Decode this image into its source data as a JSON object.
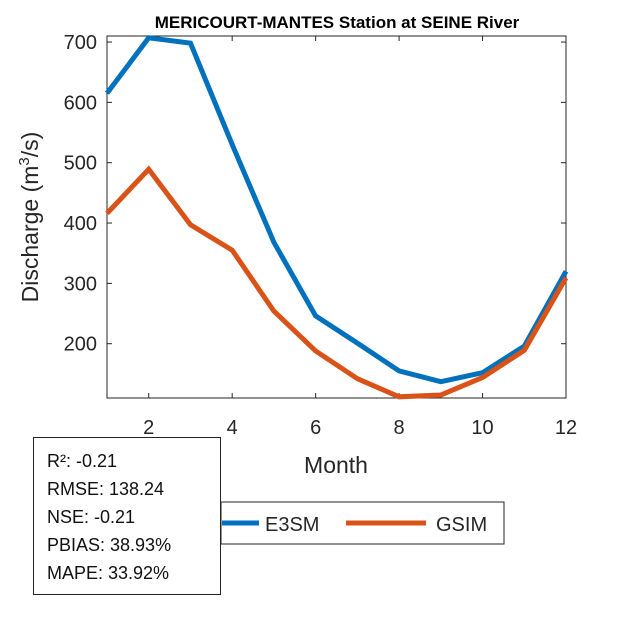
{
  "chart_data": {
    "type": "line",
    "title": "MERICOURT-MANTES  Station at  SEINE  River",
    "xlabel": "Month",
    "ylabel_main": "Discharge (m",
    "ylabel_sup": "3",
    "ylabel_end": "/s)",
    "x": [
      1,
      2,
      3,
      4,
      5,
      6,
      7,
      8,
      9,
      10,
      11,
      12
    ],
    "xlim": [
      1,
      12
    ],
    "ylim": [
      110,
      710
    ],
    "xticks": [
      2,
      4,
      6,
      8,
      10,
      12
    ],
    "yticks": [
      200,
      300,
      400,
      500,
      600,
      700
    ],
    "series": [
      {
        "name": "E3SM",
        "color": "#0072BD",
        "values": [
          615,
          707,
          698,
          530,
          368,
          246,
          201,
          155,
          137,
          152,
          196,
          320
        ]
      },
      {
        "name": "GSIM",
        "color": "#D95319",
        "values": [
          416,
          489,
          397,
          355,
          254,
          188,
          142,
          112,
          115,
          144,
          189,
          309
        ]
      }
    ],
    "grid": false,
    "legend_position": "bottom"
  },
  "stats": {
    "r2": "R²: -0.21",
    "rmse": "RMSE: 138.24",
    "nse": "NSE: -0.21",
    "pbias": "PBIAS: 38.93%",
    "mape": "MAPE: 33.92%"
  }
}
